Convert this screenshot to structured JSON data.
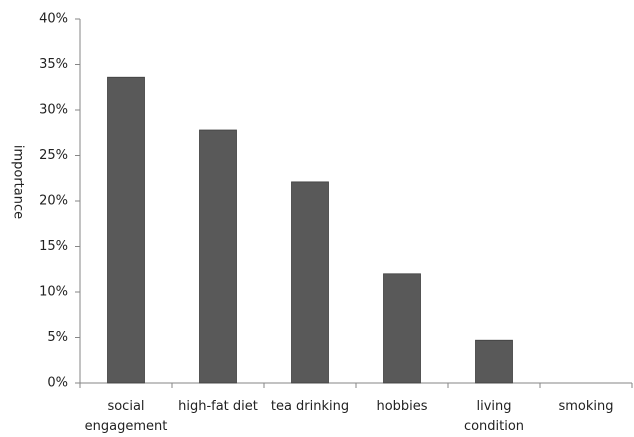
{
  "chart_data": {
    "type": "bar",
    "y_label": "importance",
    "categories": [
      "social engagement",
      "high-fat diet",
      "tea drinking",
      "hobbies",
      "living condition",
      "smoking"
    ],
    "values": [
      33.6,
      27.8,
      22.1,
      12.0,
      4.7,
      0
    ],
    "color": "#595959",
    "ylim": [
      0,
      40
    ],
    "yticks": [
      {
        "value": 0,
        "label": "0%"
      },
      {
        "value": 5,
        "label": "5%"
      },
      {
        "value": 10,
        "label": "10%"
      },
      {
        "value": 15,
        "label": "15%"
      },
      {
        "value": 20,
        "label": "20%"
      },
      {
        "value": 25,
        "label": "25%"
      },
      {
        "value": 30,
        "label": "30%"
      },
      {
        "value": 35,
        "label": "35%"
      },
      {
        "value": 40,
        "label": "40%"
      }
    ],
    "grid": false
  }
}
